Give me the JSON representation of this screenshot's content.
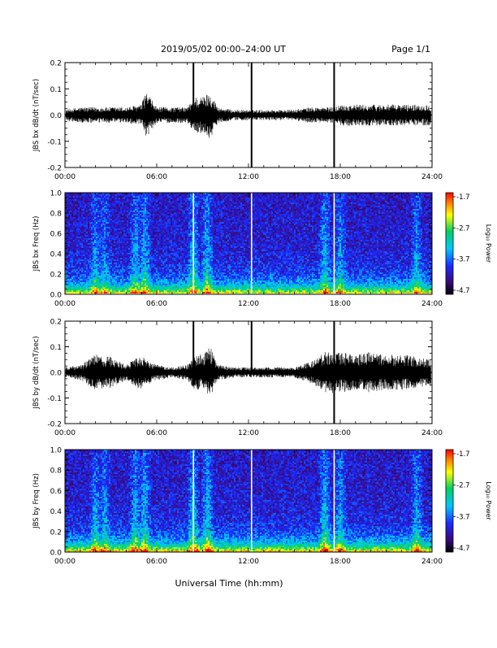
{
  "header": {
    "title": "2019/05/02  00:00–24:00 UT",
    "page": "Page 1/1"
  },
  "x_axis": {
    "label": "Universal Time (hh:mm)",
    "ticks": [
      "00:00",
      "06:00",
      "12:00",
      "18:00",
      "24:00"
    ],
    "range_hours": [
      0,
      24
    ]
  },
  "colorbar": {
    "label": "Log₁₀ Power",
    "ticks": [
      "-1.7",
      "-2.7",
      "-3.7",
      "-4.7"
    ],
    "range": [
      -4.7,
      -1.7
    ]
  },
  "chart_data": [
    {
      "type": "line",
      "ylabel": "JBS bx dB/dt (nT/sec)",
      "ylim": [
        -0.2,
        0.2
      ],
      "yticks": [
        "0.2",
        "0.1",
        "0.0",
        "-0.1",
        "-0.2"
      ],
      "x_hours": [
        0,
        1,
        2,
        3,
        4,
        5,
        5.3,
        6,
        7,
        8,
        8.5,
        9,
        9.5,
        10,
        11,
        12,
        12.2,
        13,
        14,
        15,
        16,
        17,
        17.6,
        18,
        19,
        20,
        21,
        22,
        23,
        24
      ],
      "envelope": [
        0.02,
        0.03,
        0.03,
        0.03,
        0.03,
        0.04,
        0.09,
        0.03,
        0.03,
        0.03,
        0.07,
        0.07,
        0.09,
        0.03,
        0.02,
        0.02,
        0.02,
        0.02,
        0.02,
        0.02,
        0.03,
        0.03,
        0.03,
        0.04,
        0.04,
        0.04,
        0.04,
        0.04,
        0.04,
        0.04
      ],
      "spikes": [
        {
          "x": 8.4,
          "y_top": 0.21,
          "y_bottom": -0.02
        },
        {
          "x": 12.2,
          "y_top": 0.22,
          "y_bottom": -0.2
        },
        {
          "x": 17.6,
          "y_top": 0.22,
          "y_bottom": -0.2
        }
      ]
    },
    {
      "type": "heatmap",
      "ylabel": "JBS bx Freq (Hz)",
      "ylim": [
        0,
        1.0
      ],
      "yticks": [
        "1.0",
        "0.8",
        "0.6",
        "0.4",
        "0.2",
        "0.0"
      ],
      "gap_hours": [
        8.4,
        12.2,
        17.6
      ],
      "activity_hours": [
        {
          "x": 2.0,
          "strength": 0.7
        },
        {
          "x": 2.6,
          "strength": 0.6
        },
        {
          "x": 4.6,
          "strength": 0.8
        },
        {
          "x": 5.2,
          "strength": 0.9
        },
        {
          "x": 8.4,
          "strength": 1.0
        },
        {
          "x": 9.3,
          "strength": 1.0
        },
        {
          "x": 17.0,
          "strength": 0.9
        },
        {
          "x": 18.0,
          "strength": 0.7
        },
        {
          "x": 23.0,
          "strength": 0.7
        }
      ]
    },
    {
      "type": "line",
      "ylabel": "JBS by dB/dt (nT/sec)",
      "ylim": [
        -0.2,
        0.2
      ],
      "yticks": [
        "0.2",
        "0.1",
        "0.0",
        "-0.1",
        "-0.2"
      ],
      "x_hours": [
        0,
        1,
        2,
        3,
        4,
        5,
        5.3,
        6,
        7,
        8,
        8.5,
        9,
        9.5,
        10,
        11,
        12,
        12.2,
        13,
        14,
        15,
        16,
        17,
        17.6,
        18,
        19,
        20,
        21,
        22,
        23,
        24
      ],
      "envelope": [
        0.02,
        0.03,
        0.07,
        0.06,
        0.03,
        0.07,
        0.05,
        0.03,
        0.02,
        0.03,
        0.07,
        0.07,
        0.1,
        0.03,
        0.02,
        0.02,
        0.02,
        0.02,
        0.02,
        0.02,
        0.04,
        0.08,
        0.08,
        0.08,
        0.07,
        0.08,
        0.07,
        0.07,
        0.06,
        0.05
      ],
      "spikes": [
        {
          "x": 8.4,
          "y_top": 0.21,
          "y_bottom": -0.02
        },
        {
          "x": 12.2,
          "y_top": 0.22,
          "y_bottom": 0.0
        },
        {
          "x": 17.6,
          "y_top": 0.22,
          "y_bottom": -0.2
        }
      ]
    },
    {
      "type": "heatmap",
      "ylabel": "JBS by Freq (Hz)",
      "ylim": [
        0,
        1.0
      ],
      "yticks": [
        "1.0",
        "0.8",
        "0.6",
        "0.4",
        "0.2",
        "0.0"
      ],
      "gap_hours": [
        8.4,
        12.2,
        17.6
      ],
      "activity_hours": [
        {
          "x": 2.0,
          "strength": 0.8
        },
        {
          "x": 2.6,
          "strength": 0.7
        },
        {
          "x": 4.6,
          "strength": 0.9
        },
        {
          "x": 5.2,
          "strength": 1.0
        },
        {
          "x": 8.4,
          "strength": 1.0
        },
        {
          "x": 9.3,
          "strength": 1.0
        },
        {
          "x": 17.0,
          "strength": 1.0
        },
        {
          "x": 18.0,
          "strength": 0.8
        },
        {
          "x": 23.0,
          "strength": 0.8
        }
      ]
    }
  ]
}
